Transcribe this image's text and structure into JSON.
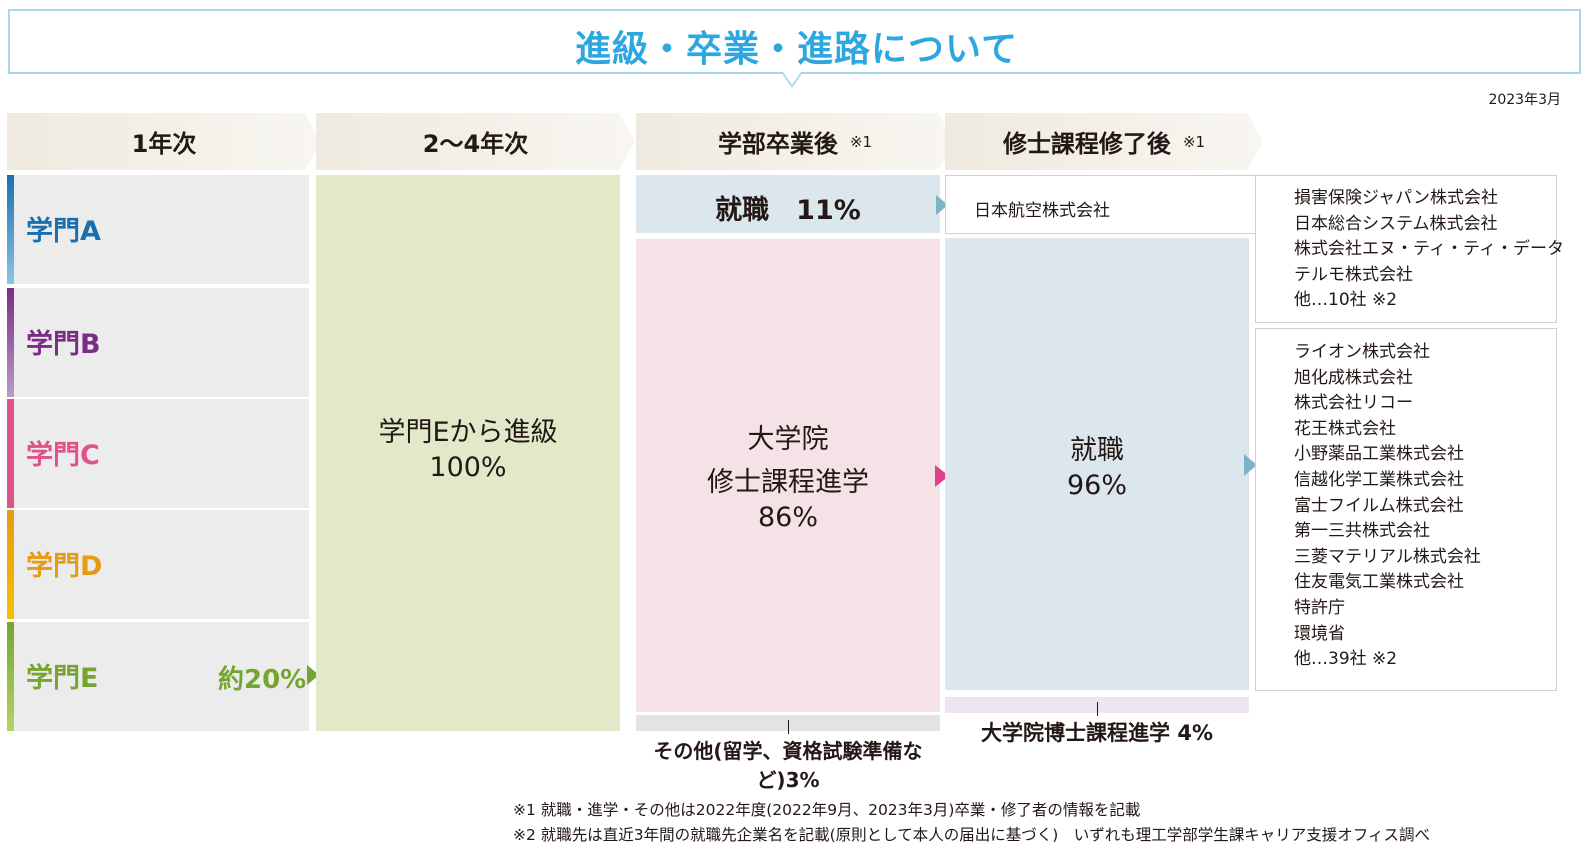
{
  "title": "進級・卒業・進路について",
  "date": "2023年3月",
  "headers": {
    "year1": "1年次",
    "year2_4": "2〜4年次",
    "after_undergrad": "学部卒業後",
    "after_undergrad_note": "※1",
    "after_master": "修士課程修了後",
    "after_master_note": "※1"
  },
  "departments": [
    {
      "label": "学門A",
      "color": "#1a6fae",
      "bar_top": "#1a6fae",
      "bar_bottom": "#8cc3e6"
    },
    {
      "label": "学門B",
      "color": "#7b2d86",
      "bar_top": "#7b2d86",
      "bar_bottom": "#b79bc9"
    },
    {
      "label": "学門C",
      "color": "#e0528a",
      "bar_top": "#e0528a",
      "bar_bottom": "#e0528a"
    },
    {
      "label": "学門D",
      "color": "#e59b12",
      "bar_top": "#e59b12",
      "bar_bottom": "#f5c000"
    },
    {
      "label": "学門E",
      "color": "#75a530",
      "bar_top": "#75a530",
      "bar_bottom": "#b3d465"
    }
  ],
  "dept_e_ratio": "約20%",
  "promotion": {
    "line1": "学門Eから進級",
    "line2": "100%"
  },
  "undergrad": {
    "job": "就職　11%",
    "grad_line1": "大学院",
    "grad_line2": "修士課程進学",
    "grad_line3": "86%",
    "other": "その他(留学、資格試験準備など)3%"
  },
  "master": {
    "job_line1": "就職",
    "job_line2": "96%",
    "doctoral": "大学院博士課程進学  4%"
  },
  "undergrad_companies": [
    "日本航空株式会社"
  ],
  "companies_box1": [
    "損害保険ジャパン株式会社",
    "日本総合システム株式会社",
    "株式会社エヌ・ティ・ティ・データ",
    "テルモ株式会社",
    "他…10社 ※2"
  ],
  "companies_box2": [
    "ライオン株式会社",
    "旭化成株式会社",
    "株式会社リコー",
    "花王株式会社",
    "小野薬品工業株式会社",
    "信越化学工業株式会社",
    "富士フイルム株式会社",
    "第一三共株式会社",
    "三菱マテリアル株式会社",
    "住友電気工業株式会社",
    "特許庁",
    "環境省",
    "他…39社 ※2"
  ],
  "footnotes": {
    "note1": "※1 就職・進学・その他は2022年度(2022年9月、2023年3月)卒業・修了者の情報を記載",
    "note2": "※2 就職先は直近3年間の就職先企業名を記載(原則として本人の届出に基づく)　いずれも理工学部学生課キャリア支援オフィス調べ"
  }
}
